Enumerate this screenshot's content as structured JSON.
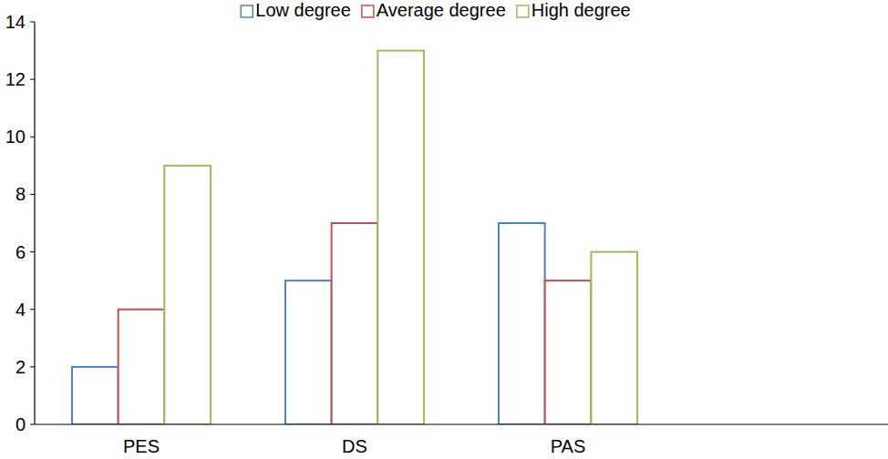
{
  "chart_data": {
    "type": "bar",
    "categories": [
      "PES",
      "DS",
      "PAS",
      null
    ],
    "series": [
      {
        "name": "Low degree",
        "color": "#4f81bd",
        "values": [
          2,
          5,
          7,
          null
        ]
      },
      {
        "name": "Average degree",
        "color": "#c0504d",
        "values": [
          4,
          7,
          5,
          null
        ]
      },
      {
        "name": "High degree",
        "color": "#9bbb59",
        "values": [
          9,
          13,
          6,
          null
        ]
      }
    ],
    "ylim": [
      0,
      14
    ],
    "yticks": [
      0,
      2,
      4,
      6,
      8,
      10,
      12,
      14
    ],
    "grid": false,
    "legend": "top"
  }
}
